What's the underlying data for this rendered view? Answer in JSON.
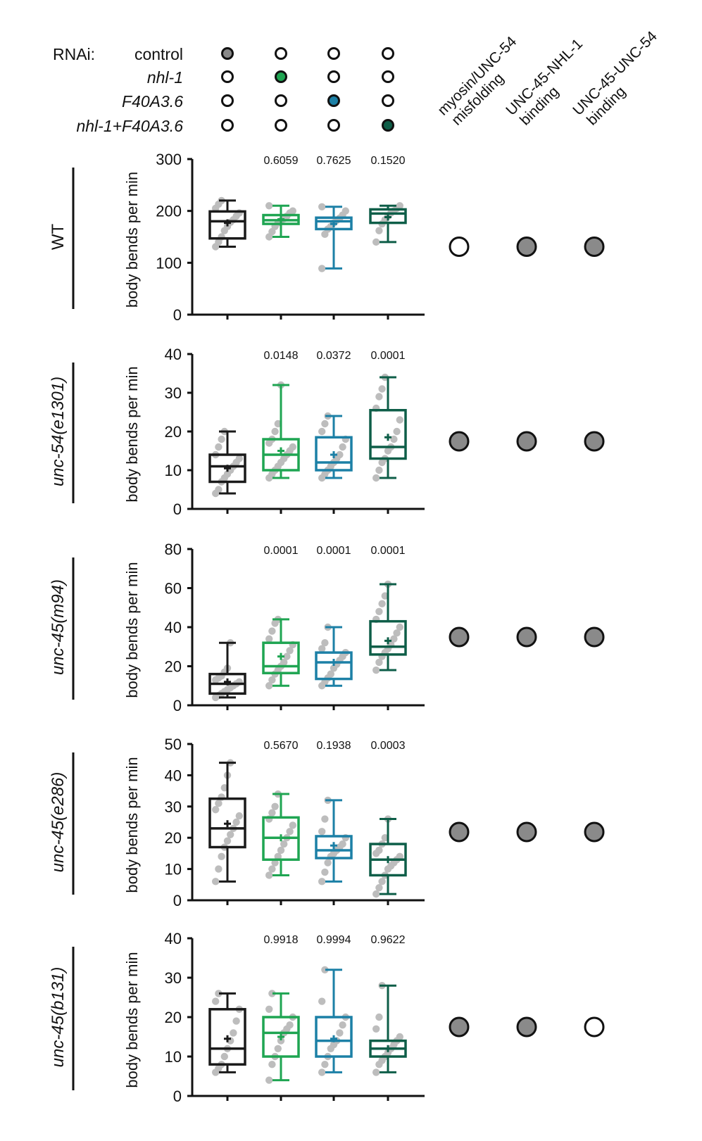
{
  "colors": {
    "control": "#1a1a1a",
    "nhl1": "#1fa552",
    "f40a36": "#1c80a6",
    "double": "#0e5e48",
    "point": "#bdbdbd",
    "dot_filled": "#8a8a8a"
  },
  "rnai": {
    "label": "RNAi:",
    "conditions": [
      "control",
      "nhl-1",
      "F40A3.6",
      "nhl-1+F40A3.6"
    ],
    "italic": [
      false,
      true,
      true,
      true
    ],
    "filled_column": [
      0,
      1,
      2,
      3
    ],
    "fill_keys": [
      "dot_filled",
      "nhl1",
      "f40a36",
      "double"
    ]
  },
  "headers": [
    [
      "myosin/UNC-54",
      "misfolding"
    ],
    [
      "UNC-45-NHL-1",
      "binding"
    ],
    [
      "UNC-45-UNC-54",
      "binding"
    ]
  ],
  "chart_data": [
    {
      "type": "box",
      "row_label": "WT",
      "italic": false,
      "ylabel": "body bends per min",
      "ylim": [
        0,
        300
      ],
      "ticks": [
        0,
        100,
        200,
        300
      ],
      "pvalues": [
        "0.6059",
        "0.7625",
        "0.1520"
      ],
      "boxes": [
        {
          "min": 131,
          "q1": 147,
          "median": 180,
          "q3": 199,
          "max": 220,
          "mean": 177,
          "points": [
            131,
            140,
            150,
            162,
            170,
            178,
            183,
            190,
            196,
            205,
            213,
            220
          ]
        },
        {
          "min": 150,
          "q1": 175,
          "median": 182,
          "q3": 192,
          "max": 210,
          "mean": 184,
          "points": [
            150,
            160,
            170,
            177,
            181,
            185,
            190,
            196,
            200,
            210
          ]
        },
        {
          "min": 89,
          "q1": 165,
          "median": 180,
          "q3": 187,
          "max": 208,
          "mean": 175,
          "points": [
            89,
            155,
            165,
            170,
            177,
            182,
            186,
            192,
            200,
            208
          ]
        },
        {
          "min": 140,
          "q1": 177,
          "median": 195,
          "q3": 203,
          "max": 210,
          "mean": 188,
          "points": [
            140,
            162,
            175,
            183,
            190,
            196,
            200,
            205,
            210
          ]
        }
      ],
      "dots": [
        false,
        true,
        true
      ]
    },
    {
      "type": "box",
      "row_label": "unc-54(e1301)",
      "italic": true,
      "ylabel": "body bends per min",
      "ylim": [
        0,
        40
      ],
      "ticks": [
        0,
        10,
        20,
        30,
        40
      ],
      "pvalues": [
        "0.0148",
        "0.0372",
        "0.0001"
      ],
      "boxes": [
        {
          "min": 4,
          "q1": 7,
          "median": 11,
          "q3": 14,
          "max": 20,
          "mean": 10.5,
          "points": [
            4,
            5,
            7,
            8,
            9,
            10,
            11,
            12,
            13,
            14,
            16,
            18,
            20
          ]
        },
        {
          "min": 8,
          "q1": 10,
          "median": 14,
          "q3": 18,
          "max": 32,
          "mean": 15,
          "points": [
            8,
            9,
            10,
            11,
            12,
            13,
            14,
            15,
            16,
            17,
            18,
            20,
            22,
            32
          ]
        },
        {
          "min": 8,
          "q1": 10,
          "median": 12,
          "q3": 18.5,
          "max": 24,
          "mean": 14,
          "points": [
            8,
            9,
            10,
            11,
            12,
            13,
            14,
            16,
            18,
            20,
            22,
            24
          ]
        },
        {
          "min": 8,
          "q1": 13,
          "median": 16,
          "q3": 25.5,
          "max": 34,
          "mean": 18.5,
          "points": [
            8,
            10,
            12,
            13,
            15,
            16,
            18,
            20,
            23,
            26,
            29,
            31,
            34
          ]
        }
      ],
      "dots": [
        true,
        true,
        true
      ]
    },
    {
      "type": "box",
      "row_label": "unc-45(m94)",
      "italic": true,
      "ylabel": "body bends per min",
      "ylim": [
        0,
        80
      ],
      "ticks": [
        0,
        20,
        40,
        60,
        80
      ],
      "pvalues": [
        "0.0001",
        "0.0001",
        "0.0001"
      ],
      "boxes": [
        {
          "min": 4,
          "q1": 6,
          "median": 11,
          "q3": 16,
          "max": 32,
          "mean": 12,
          "points": [
            4,
            5,
            6,
            7,
            8,
            9,
            10,
            11,
            12,
            13,
            14,
            15,
            17,
            19,
            32
          ]
        },
        {
          "min": 10,
          "q1": 16.5,
          "median": 20,
          "q3": 32,
          "max": 44,
          "mean": 25,
          "points": [
            10,
            13,
            16,
            18,
            20,
            22,
            25,
            28,
            31,
            34,
            38,
            42,
            44
          ]
        },
        {
          "min": 10,
          "q1": 13.5,
          "median": 22,
          "q3": 27,
          "max": 40,
          "mean": 22,
          "points": [
            10,
            12,
            14,
            16,
            19,
            21,
            23,
            25,
            27,
            29,
            32,
            40
          ]
        },
        {
          "min": 18,
          "q1": 26,
          "median": 30,
          "q3": 43,
          "max": 62,
          "mean": 33,
          "points": [
            18,
            22,
            25,
            27,
            29,
            31,
            34,
            37,
            40,
            44,
            48,
            52,
            56,
            62
          ]
        }
      ],
      "dots": [
        true,
        true,
        true
      ]
    },
    {
      "type": "box",
      "row_label": "unc-45(e286)",
      "italic": true,
      "ylabel": "body bends per min",
      "ylim": [
        0,
        50
      ],
      "ticks": [
        0,
        10,
        20,
        30,
        40,
        50
      ],
      "pvalues": [
        "0.5670",
        "0.1938",
        "0.0003"
      ],
      "boxes": [
        {
          "min": 6,
          "q1": 17,
          "median": 23,
          "q3": 32.5,
          "max": 44,
          "mean": 24.5,
          "points": [
            6,
            10,
            14,
            17,
            19,
            21,
            23,
            25,
            27,
            29,
            31,
            33,
            36,
            40,
            44
          ]
        },
        {
          "min": 8,
          "q1": 13,
          "median": 20,
          "q3": 26.5,
          "max": 34,
          "mean": 20,
          "points": [
            8,
            10,
            12,
            14,
            16,
            18,
            20,
            22,
            24,
            26,
            28,
            30,
            34
          ]
        },
        {
          "min": 6,
          "q1": 13.5,
          "median": 16,
          "q3": 20.5,
          "max": 32,
          "mean": 17.5,
          "points": [
            6,
            9,
            12,
            14,
            15,
            16,
            17,
            18,
            20,
            22,
            26,
            32
          ]
        },
        {
          "min": 2,
          "q1": 8,
          "median": 13,
          "q3": 18,
          "max": 26,
          "mean": 13,
          "points": [
            2,
            4,
            6,
            8,
            10,
            11,
            12,
            13,
            14,
            15,
            16,
            18,
            20,
            26
          ]
        }
      ],
      "dots": [
        true,
        true,
        true
      ]
    },
    {
      "type": "box",
      "row_label": "unc-45(b131)",
      "italic": true,
      "ylabel": "body bends per min",
      "ylim": [
        0,
        40
      ],
      "ticks": [
        0,
        10,
        20,
        30,
        40
      ],
      "pvalues": [
        "0.9918",
        "0.9994",
        "0.9622"
      ],
      "boxes": [
        {
          "min": 6,
          "q1": 8,
          "median": 12,
          "q3": 22,
          "max": 26,
          "mean": 14.5,
          "points": [
            6,
            7,
            8,
            10,
            12,
            14,
            16,
            19,
            22,
            24,
            26
          ]
        },
        {
          "min": 4,
          "q1": 10,
          "median": 16,
          "q3": 20,
          "max": 26,
          "mean": 15,
          "points": [
            4,
            8,
            10,
            12,
            14,
            16,
            17,
            18,
            20,
            22,
            26
          ]
        },
        {
          "min": 6,
          "q1": 10,
          "median": 14,
          "q3": 20,
          "max": 32,
          "mean": 14.5,
          "points": [
            6,
            8,
            10,
            12,
            13,
            14,
            16,
            18,
            20,
            24,
            32
          ]
        },
        {
          "min": 6,
          "q1": 10,
          "median": 12,
          "q3": 14,
          "max": 28,
          "mean": 12,
          "points": [
            6,
            8,
            9,
            10,
            11,
            12,
            13,
            14,
            15,
            17,
            20,
            28
          ]
        }
      ],
      "dots": [
        true,
        true,
        false
      ]
    }
  ]
}
